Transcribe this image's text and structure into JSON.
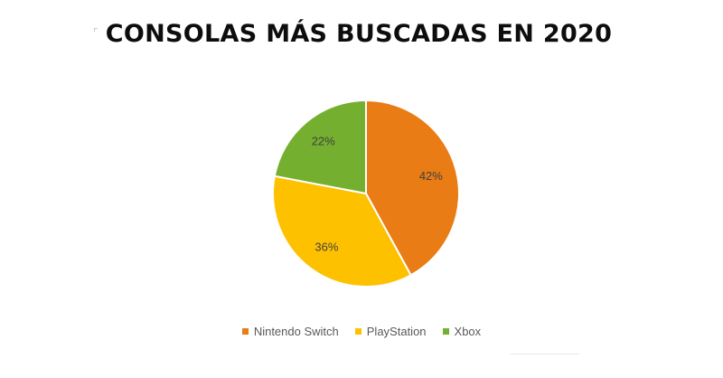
{
  "chart_data": {
    "type": "pie",
    "title": "CONSOLAS MÁS BUSCADAS EN 2020",
    "categories": [
      "Nintendo Switch",
      "PlayStation",
      "Xbox"
    ],
    "values": [
      42,
      36,
      22
    ],
    "value_labels": [
      "42%",
      "36%",
      "22%"
    ],
    "colors": [
      "#E97C14",
      "#FDC100",
      "#74AF2F"
    ],
    "legend_position": "bottom"
  }
}
